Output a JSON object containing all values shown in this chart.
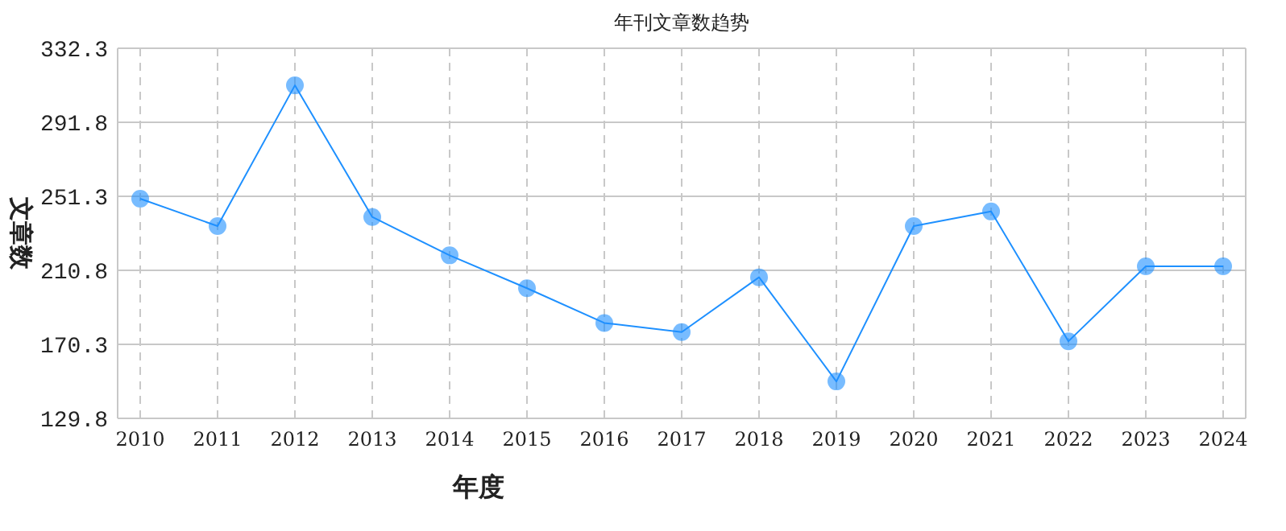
{
  "chart_data": {
    "type": "line",
    "title": "年刊文章数趋势",
    "xlabel": "年度",
    "ylabel": "文章数",
    "categories": [
      "2010",
      "2011",
      "2012",
      "2013",
      "2014",
      "2015",
      "2016",
      "2017",
      "2018",
      "2019",
      "2020",
      "2021",
      "2022",
      "2023",
      "2024"
    ],
    "values": [
      250,
      235,
      312,
      240,
      219,
      201,
      182,
      177,
      207,
      150,
      235,
      243,
      172,
      213,
      213
    ],
    "color": "#1e90ff",
    "marker": "circle",
    "grid": true,
    "ylim": [
      129.8,
      332.3
    ],
    "yticks": [
      129.8,
      170.3,
      210.8,
      251.3,
      291.8,
      332.3
    ]
  }
}
